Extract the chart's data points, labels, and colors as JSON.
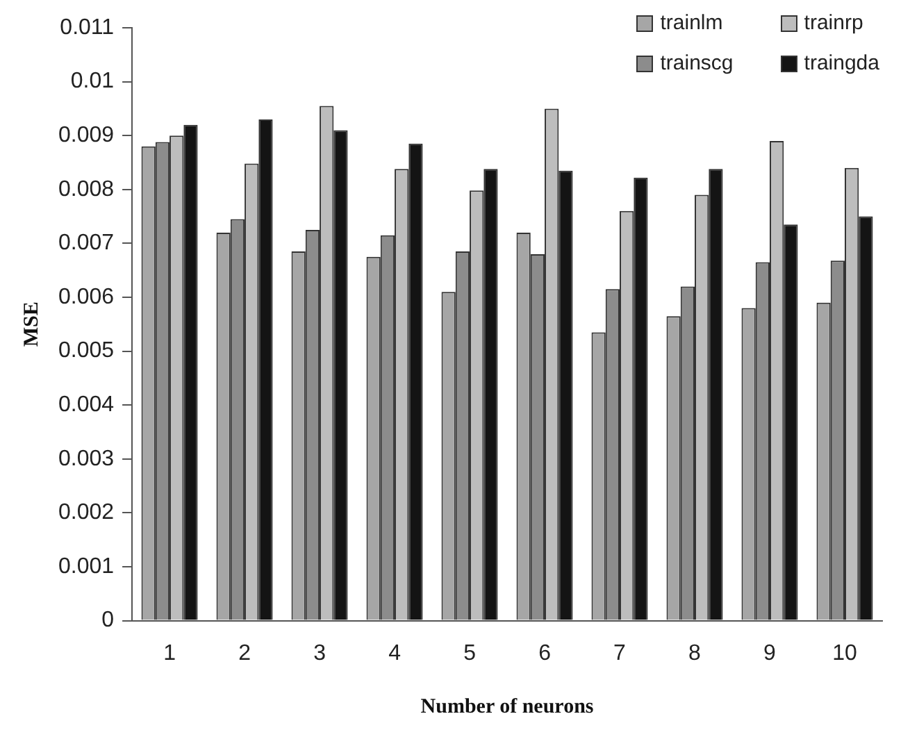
{
  "chart_data": {
    "type": "bar",
    "xlabel": "Number of neurons",
    "ylabel": "MSE",
    "categories": [
      "1",
      "2",
      "3",
      "4",
      "5",
      "6",
      "7",
      "8",
      "9",
      "10"
    ],
    "series": [
      {
        "name": "trainlm",
        "color": "#a6a6a6",
        "values": [
          0.0088,
          0.0072,
          0.00685,
          0.00675,
          0.0061,
          0.0072,
          0.00535,
          0.00565,
          0.0058,
          0.0059
        ]
      },
      {
        "name": "trainscg",
        "color": "#8c8c8c",
        "values": [
          0.00888,
          0.00745,
          0.00725,
          0.00715,
          0.00685,
          0.0068,
          0.00615,
          0.0062,
          0.00665,
          0.00668
        ]
      },
      {
        "name": "trainrp",
        "color": "#bdbdbd",
        "values": [
          0.009,
          0.00848,
          0.00955,
          0.00838,
          0.00798,
          0.0095,
          0.0076,
          0.0079,
          0.0089,
          0.0084
        ]
      },
      {
        "name": "traingda",
        "color": "#141414",
        "values": [
          0.0092,
          0.0093,
          0.0091,
          0.00885,
          0.00838,
          0.00835,
          0.00822,
          0.00838,
          0.00735,
          0.0075
        ]
      }
    ],
    "ylim": [
      0,
      0.011
    ],
    "yticks": [
      0,
      0.001,
      0.002,
      0.003,
      0.004,
      0.005,
      0.006,
      0.007,
      0.008,
      0.009,
      0.01,
      0.011
    ],
    "grid": false,
    "legend": "top right"
  }
}
